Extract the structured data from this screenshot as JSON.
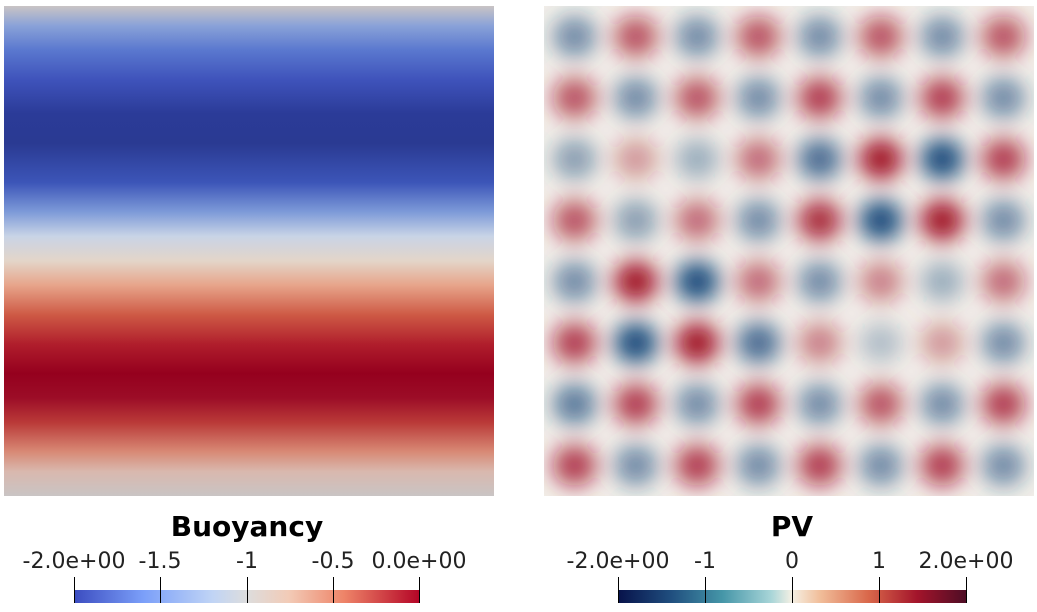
{
  "left": {
    "title": "Buoyancy",
    "ticks": [
      "-2.0e+00",
      "-1.5",
      "-1",
      "-0.5",
      "0.0e+00"
    ]
  },
  "right": {
    "title": "PV",
    "ticks": [
      "-2.0e+00",
      "-1",
      "0",
      "1",
      "2.0e+00"
    ]
  },
  "colors": {
    "red": "#a3142b",
    "blue": "#1f4d7e",
    "neutral": "#f2efe9"
  }
}
